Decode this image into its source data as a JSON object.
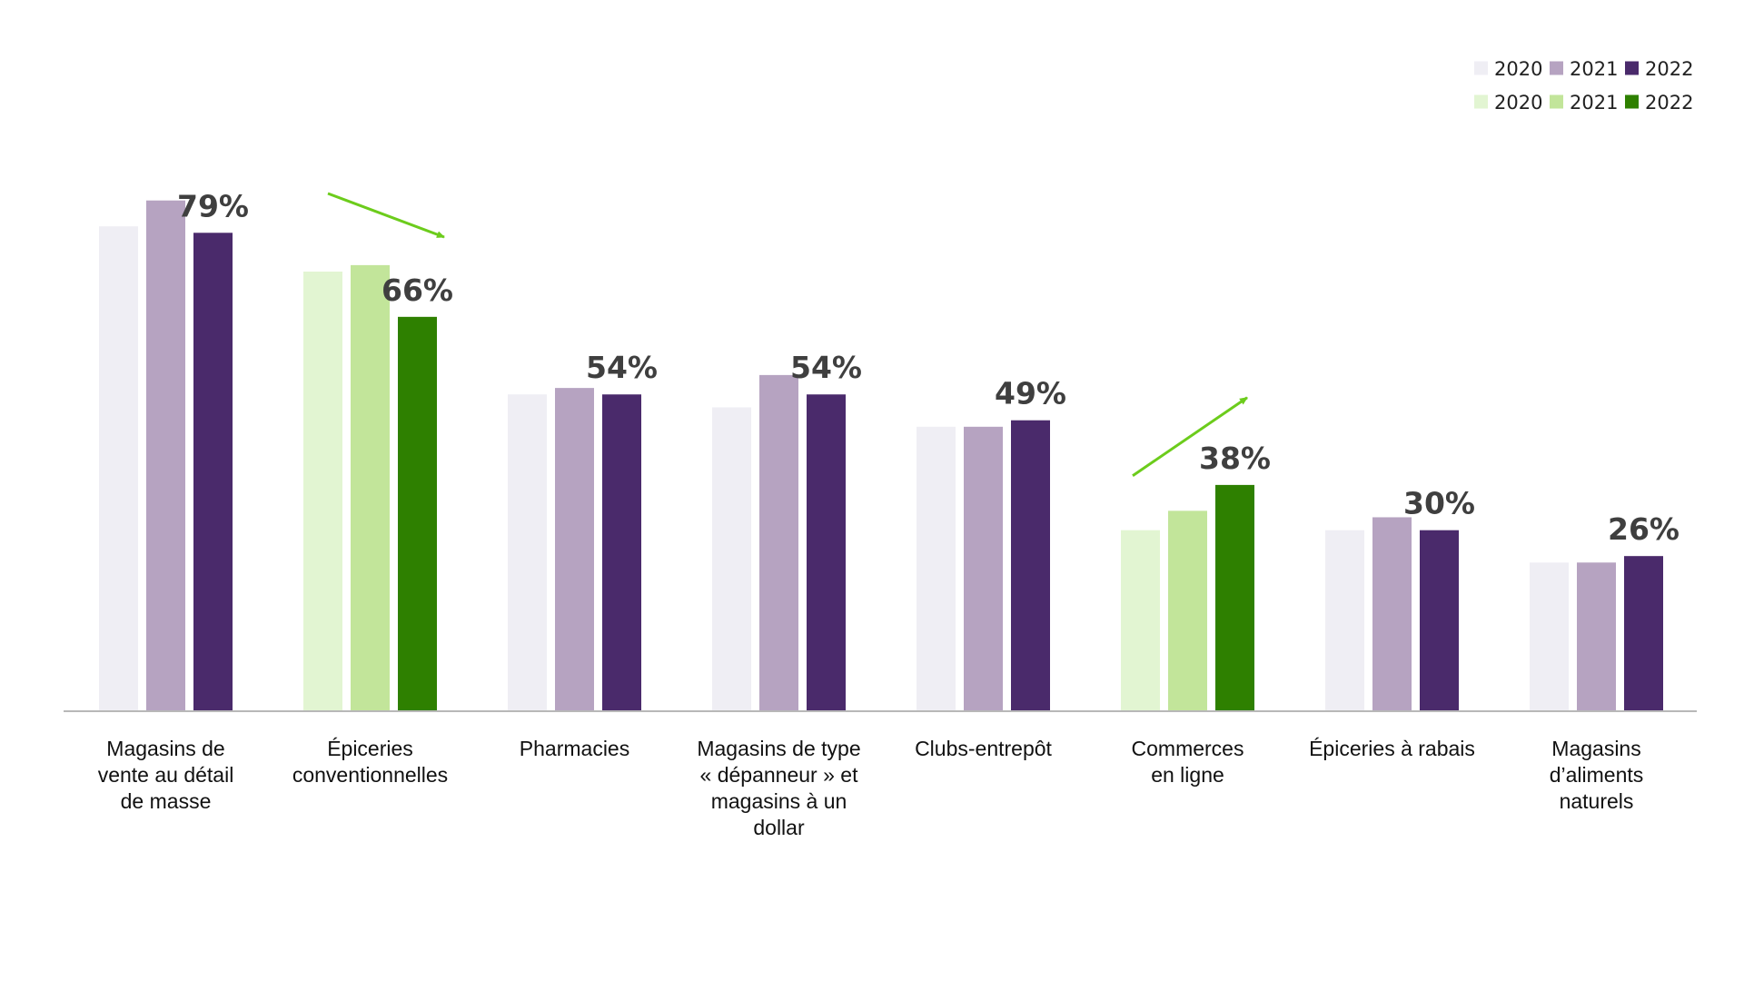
{
  "chart_data": {
    "type": "bar",
    "title": "",
    "xlabel": "",
    "ylabel": "",
    "ylim": [
      0,
      85
    ],
    "grid": false,
    "legend_position": "top-right",
    "categories": [
      [
        "Magasins de",
        "vente au détail",
        "de masse"
      ],
      [
        "Épiceries",
        "conventionnelles"
      ],
      [
        "Pharmacies"
      ],
      [
        "Magasins de type",
        "« dépanneur » et",
        "magasins à un",
        "dollar"
      ],
      [
        "Clubs-entrepôt"
      ],
      [
        "Commerces",
        "en ligne"
      ],
      [
        "Épiceries à rabais"
      ],
      [
        "Magasins",
        "d’aliments",
        "naturels"
      ]
    ],
    "series": [
      {
        "name": "2020",
        "values": [
          75,
          68,
          49,
          47,
          44,
          28,
          28,
          23
        ]
      },
      {
        "name": "2021",
        "values": [
          79,
          69,
          50,
          52,
          44,
          31,
          30,
          23
        ]
      },
      {
        "name": "2022",
        "values": [
          74,
          61,
          49,
          49,
          45,
          35,
          28,
          24
        ]
      }
    ],
    "value_labels": [
      "79%",
      "66%",
      "54%",
      "54%",
      "49%",
      "38%",
      "30%",
      "26%"
    ],
    "highlighted_categories": [
      1,
      5
    ],
    "trend_arrows": [
      {
        "category": 1,
        "direction": "down"
      },
      {
        "category": 5,
        "direction": "up"
      }
    ],
    "legend": [
      {
        "group": "purple",
        "entries": [
          {
            "label": "2020",
            "color": "#efeef4"
          },
          {
            "label": "2021",
            "color": "#b6a3c1"
          },
          {
            "label": "2022",
            "color": "#4a2a6b"
          }
        ]
      },
      {
        "group": "green",
        "entries": [
          {
            "label": "2020",
            "color": "#e2f5d2"
          },
          {
            "label": "2021",
            "color": "#c2e59a"
          },
          {
            "label": "2022",
            "color": "#2e8000"
          }
        ]
      }
    ],
    "colors": {
      "purple": [
        "#efeef4",
        "#b6a3c1",
        "#4a2a6b"
      ],
      "green": [
        "#e2f5d2",
        "#c2e59a",
        "#2e8000"
      ],
      "arrow": "#6ccc1c",
      "axis": "#b8b8b8"
    }
  }
}
